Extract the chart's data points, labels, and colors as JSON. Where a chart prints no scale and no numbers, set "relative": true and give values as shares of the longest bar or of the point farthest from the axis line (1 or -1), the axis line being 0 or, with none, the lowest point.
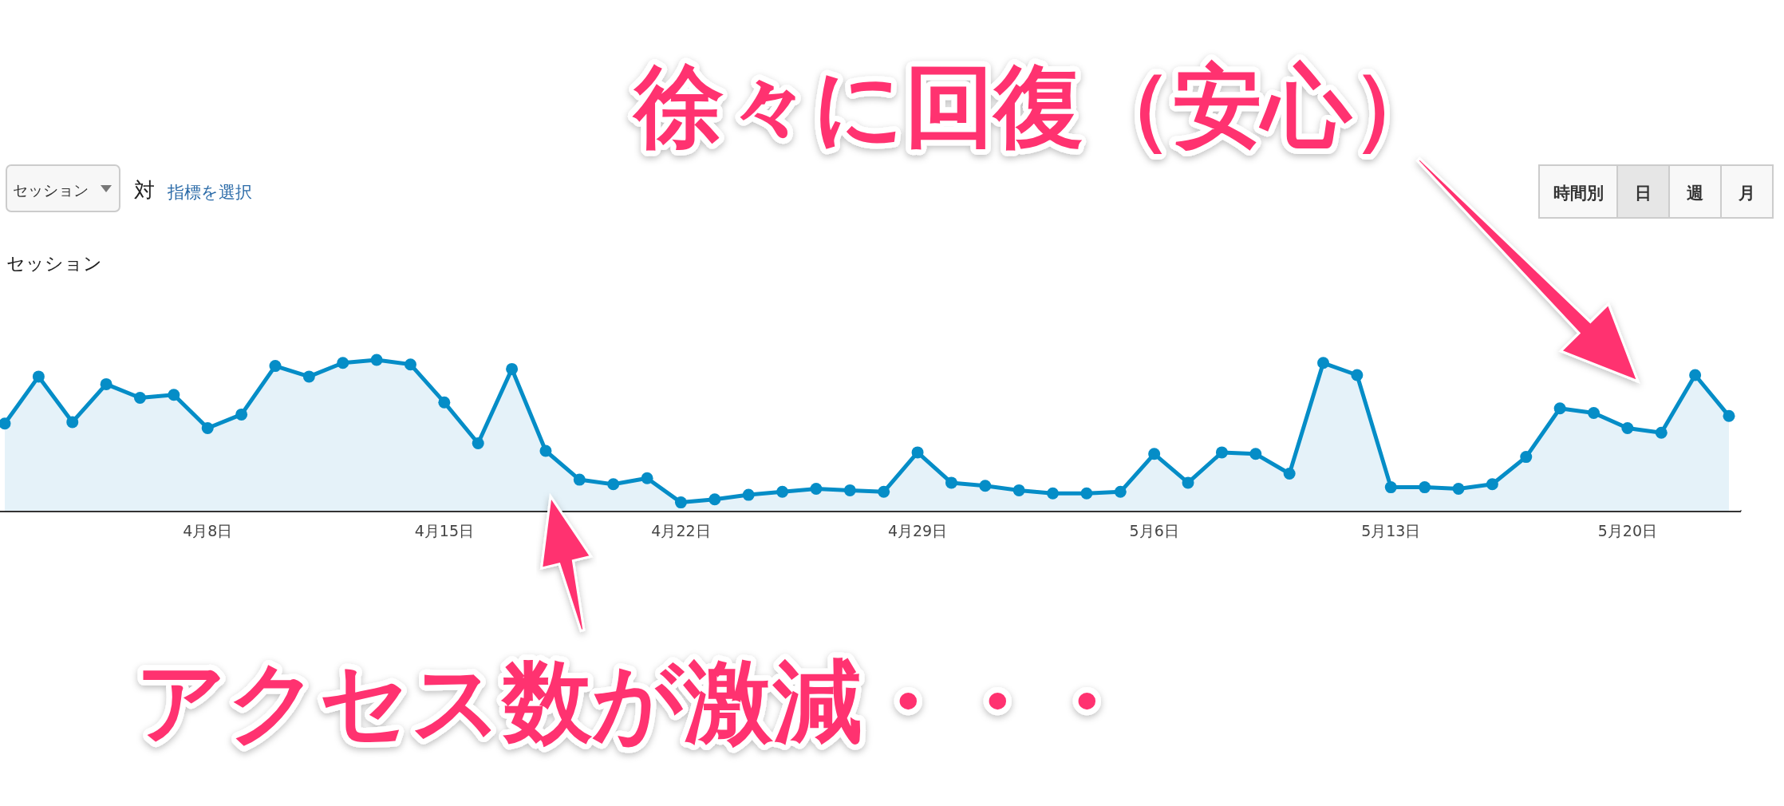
{
  "chart_data": {
    "type": "area",
    "relative": true,
    "ylabel": "セッション",
    "categories": [
      null,
      null,
      null,
      null,
      null,
      null,
      "4月8日",
      null,
      null,
      null,
      null,
      null,
      null,
      "4月15日",
      null,
      null,
      null,
      null,
      null,
      null,
      "4月22日",
      null,
      null,
      null,
      null,
      null,
      null,
      "4月29日",
      null,
      null,
      null,
      null,
      null,
      null,
      "5月6日",
      null,
      null,
      null,
      null,
      null,
      null,
      "5月13日",
      null,
      null,
      null,
      null,
      null,
      null,
      "5月20日",
      null,
      null,
      null
    ],
    "series": [
      {
        "color": "#058dc7",
        "values": [
          0.58,
          0.89,
          0.59,
          0.84,
          0.75,
          0.77,
          0.55,
          0.64,
          0.96,
          0.89,
          0.98,
          1,
          0.97,
          0.72,
          0.45,
          0.94,
          0.4,
          0.21,
          0.18,
          0.22,
          0.06,
          0.08,
          0.11,
          0.13,
          0.15,
          0.14,
          0.13,
          0.39,
          0.19,
          0.17,
          0.14,
          0.12,
          0.12,
          0.13,
          0.38,
          0.19,
          0.39,
          0.38,
          0.25,
          0.98,
          0.9,
          0.16,
          0.16,
          0.15,
          0.18,
          0.36,
          0.68,
          0.65,
          0.55,
          0.52,
          0.9,
          0.63
        ]
      }
    ],
    "marker": "circle",
    "annotations": [
      "徐々に回復（安心）",
      "アクセス数が激減・・・",
      "セッション",
      "対",
      "指標を選択",
      "時間別",
      "日",
      "週",
      "月"
    ]
  }
}
